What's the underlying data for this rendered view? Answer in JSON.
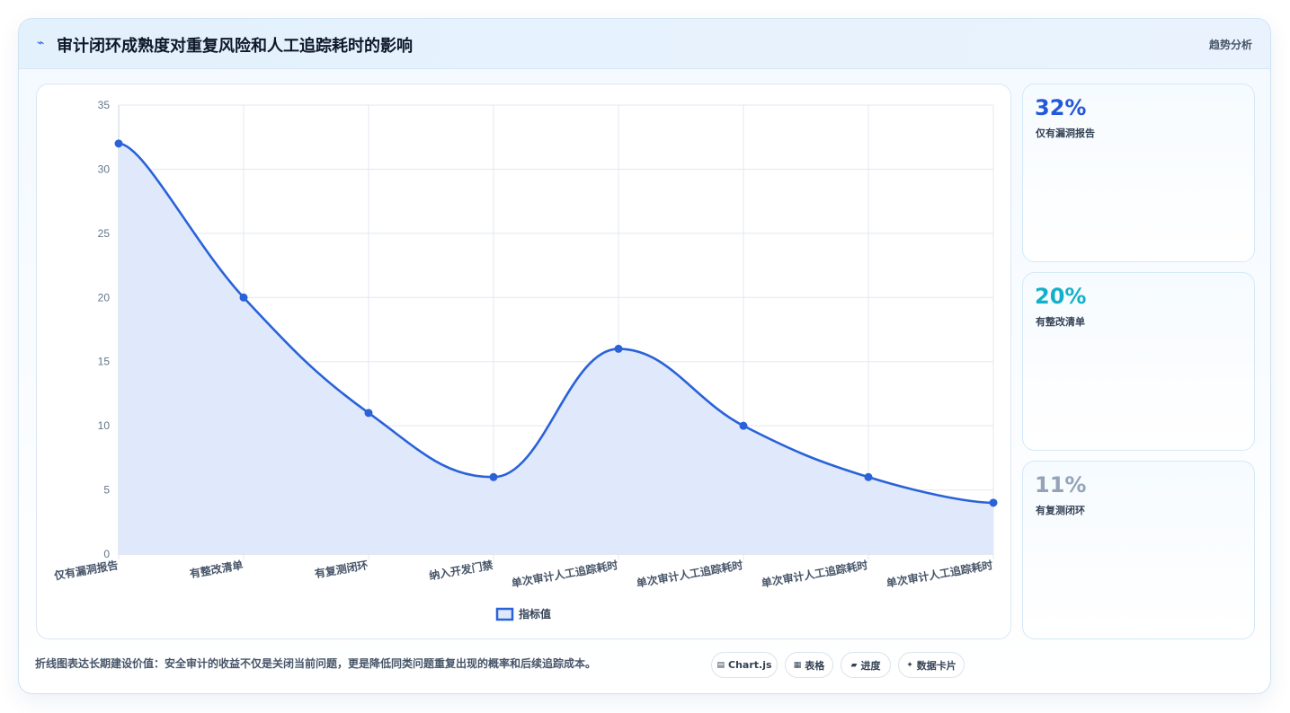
{
  "header": {
    "title": "审计闭环成熟度对重复风险和人工追踪耗时的影响",
    "right_label": "趋势分析",
    "icon": "bolt-icon"
  },
  "chart_data": {
    "type": "line",
    "categories": [
      "仅有漏洞报告",
      "有整改清单",
      "有复测闭环",
      "纳入开发门禁",
      "单次审计人工追踪耗时",
      "单次审计人工追踪耗时",
      "单次审计人工追踪耗时",
      "单次审计人工追踪耗时"
    ],
    "series": [
      {
        "name": "指标值",
        "values": [
          32,
          20,
          11,
          6,
          16,
          10,
          6,
          4
        ]
      }
    ],
    "yticks": [
      "0",
      "5",
      "10",
      "15",
      "20",
      "25",
      "30",
      "35"
    ],
    "ylim": [
      0,
      35
    ],
    "legend": "bottom",
    "grid": true,
    "fill": true,
    "colors": {
      "line": "#2a62d8",
      "fill": "#dfe9fb"
    }
  },
  "stats": [
    {
      "value": "32%",
      "label": "仅有漏洞报告",
      "color": "#2358d8"
    },
    {
      "value": "20%",
      "label": "有整改清单",
      "color": "#14b0c7"
    },
    {
      "value": "11%",
      "label": "有复测闭环",
      "color": "#94a3b8"
    }
  ],
  "footer": {
    "note": "折线图表达长期建设价值：安全审计的收益不仅是关闭当前问题，更是降低同类问题重复出现的概率和后续追踪成本。",
    "pills": [
      {
        "icon": "▤",
        "label": "Chart.js"
      },
      {
        "icon": "▦",
        "label": "表格"
      },
      {
        "icon": "▰",
        "label": "进度"
      },
      {
        "icon": "✦",
        "label": "数据卡片"
      }
    ]
  }
}
